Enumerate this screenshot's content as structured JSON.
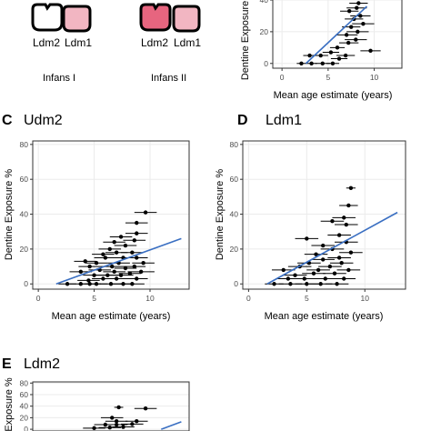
{
  "legend_top": {
    "group1": {
      "labels": [
        "Ldm2",
        "Ldm1"
      ],
      "caption": "Infans I",
      "tooth_colors": [
        "#ffffff",
        "#f2b6c2"
      ]
    },
    "group2": {
      "labels": [
        "Ldm2",
        "Ldm1"
      ],
      "caption": "Infans II",
      "tooth_colors": [
        "#e7657f",
        "#f2b6c2"
      ]
    }
  },
  "colors": {
    "fit_line": "#3a6fc2",
    "point": "#000000",
    "grid": "#ebebeb",
    "panel_border": "#333333"
  },
  "chart_data": [
    {
      "panel": "",
      "title": "",
      "type": "scatter",
      "xlabel": "Mean age estimate (years)",
      "ylabel": "Dentine Exposure %",
      "xlim": [
        -1,
        13
      ],
      "ylim": [
        -3,
        40
      ],
      "xticks": [
        0,
        5,
        10
      ],
      "yticks": [
        0,
        20,
        40
      ],
      "points": [
        {
          "x": 2.1,
          "y": 0,
          "xmin": 1.6,
          "xmax": 2.6
        },
        {
          "x": 3.2,
          "y": 0,
          "xmin": 2.6,
          "xmax": 3.8
        },
        {
          "x": 4.4,
          "y": 0,
          "xmin": 3.6,
          "xmax": 5.2
        },
        {
          "x": 5.5,
          "y": 0,
          "xmin": 4.8,
          "xmax": 6.2
        },
        {
          "x": 3.0,
          "y": 5,
          "xmin": 2.3,
          "xmax": 3.7
        },
        {
          "x": 4.2,
          "y": 5,
          "xmin": 3.4,
          "xmax": 5.0
        },
        {
          "x": 5.3,
          "y": 7,
          "xmin": 4.4,
          "xmax": 6.2
        },
        {
          "x": 6.0,
          "y": 10,
          "xmin": 5.2,
          "xmax": 6.8
        },
        {
          "x": 7.2,
          "y": 13,
          "xmin": 6.2,
          "xmax": 8.3
        },
        {
          "x": 8.0,
          "y": 15,
          "xmin": 6.8,
          "xmax": 9.2
        },
        {
          "x": 7.0,
          "y": 18,
          "xmin": 5.8,
          "xmax": 8.2
        },
        {
          "x": 8.2,
          "y": 20,
          "xmin": 7.0,
          "xmax": 9.4
        },
        {
          "x": 7.5,
          "y": 23,
          "xmin": 6.5,
          "xmax": 8.5
        },
        {
          "x": 8.8,
          "y": 25,
          "xmin": 7.6,
          "xmax": 10.0
        },
        {
          "x": 7.8,
          "y": 28,
          "xmin": 6.8,
          "xmax": 8.8
        },
        {
          "x": 8.5,
          "y": 30,
          "xmin": 7.4,
          "xmax": 9.6
        },
        {
          "x": 7.3,
          "y": 33,
          "xmin": 6.3,
          "xmax": 8.3
        },
        {
          "x": 8.1,
          "y": 35,
          "xmin": 7.0,
          "xmax": 9.2
        },
        {
          "x": 8.3,
          "y": 38,
          "xmin": 7.3,
          "xmax": 9.3
        },
        {
          "x": 6.2,
          "y": 3,
          "xmin": 5.3,
          "xmax": 7.1
        },
        {
          "x": 6.9,
          "y": 5,
          "xmin": 5.9,
          "xmax": 7.9
        },
        {
          "x": 9.6,
          "y": 8,
          "xmin": 8.5,
          "xmax": 10.7
        }
      ],
      "fit_line": [
        [
          2.6,
          0
        ],
        [
          9.2,
          36
        ]
      ]
    },
    {
      "panel": "C",
      "title": "Udm2",
      "type": "scatter",
      "xlabel": "Mean age estimate (years)",
      "ylabel": "Dentine Exposure %",
      "xlim": [
        -0.5,
        13.5
      ],
      "ylim": [
        -3,
        82
      ],
      "xticks": [
        0,
        5,
        10
      ],
      "yticks": [
        0,
        20,
        40,
        60,
        80
      ],
      "points": [
        {
          "x": 2.6,
          "y": 0,
          "xmin": 1.8,
          "xmax": 3.4
        },
        {
          "x": 3.8,
          "y": 0,
          "xmin": 2.8,
          "xmax": 4.8
        },
        {
          "x": 4.6,
          "y": 0,
          "xmin": 3.6,
          "xmax": 5.6
        },
        {
          "x": 5.2,
          "y": 0,
          "xmin": 4.2,
          "xmax": 6.2
        },
        {
          "x": 6.5,
          "y": 0,
          "xmin": 5.5,
          "xmax": 7.5
        },
        {
          "x": 7.6,
          "y": 0,
          "xmin": 6.6,
          "xmax": 8.6
        },
        {
          "x": 8.4,
          "y": 0,
          "xmin": 7.3,
          "xmax": 9.5
        },
        {
          "x": 4.5,
          "y": 2,
          "xmin": 3.5,
          "xmax": 5.5
        },
        {
          "x": 5.8,
          "y": 3,
          "xmin": 4.8,
          "xmax": 6.8
        },
        {
          "x": 7.0,
          "y": 3,
          "xmin": 6.0,
          "xmax": 8.0
        },
        {
          "x": 8.8,
          "y": 3,
          "xmin": 7.8,
          "xmax": 9.8
        },
        {
          "x": 5.0,
          "y": 5,
          "xmin": 4.0,
          "xmax": 6.0
        },
        {
          "x": 6.2,
          "y": 5,
          "xmin": 5.2,
          "xmax": 7.2
        },
        {
          "x": 7.4,
          "y": 5,
          "xmin": 6.3,
          "xmax": 8.5
        },
        {
          "x": 8.2,
          "y": 6,
          "xmin": 7.2,
          "xmax": 9.2
        },
        {
          "x": 3.8,
          "y": 7,
          "xmin": 2.8,
          "xmax": 4.8
        },
        {
          "x": 6.8,
          "y": 7,
          "xmin": 5.8,
          "xmax": 7.8
        },
        {
          "x": 9.2,
          "y": 7,
          "xmin": 8.0,
          "xmax": 10.4
        },
        {
          "x": 5.5,
          "y": 8,
          "xmin": 4.5,
          "xmax": 6.5
        },
        {
          "x": 7.8,
          "y": 9,
          "xmin": 6.8,
          "xmax": 8.8
        },
        {
          "x": 4.6,
          "y": 10,
          "xmin": 3.6,
          "xmax": 5.6
        },
        {
          "x": 6.6,
          "y": 10,
          "xmin": 5.6,
          "xmax": 7.6
        },
        {
          "x": 8.6,
          "y": 10,
          "xmin": 7.6,
          "xmax": 9.6
        },
        {
          "x": 5.2,
          "y": 12,
          "xmin": 4.2,
          "xmax": 6.2
        },
        {
          "x": 7.2,
          "y": 12,
          "xmin": 6.2,
          "xmax": 8.2
        },
        {
          "x": 9.4,
          "y": 12,
          "xmin": 8.4,
          "xmax": 10.4
        },
        {
          "x": 4.2,
          "y": 13,
          "xmin": 3.2,
          "xmax": 5.2
        },
        {
          "x": 6.0,
          "y": 15,
          "xmin": 5.0,
          "xmax": 7.0
        },
        {
          "x": 7.6,
          "y": 15,
          "xmin": 6.6,
          "xmax": 8.6
        },
        {
          "x": 8.8,
          "y": 15,
          "xmin": 7.8,
          "xmax": 9.8
        },
        {
          "x": 5.8,
          "y": 17,
          "xmin": 4.8,
          "xmax": 6.8
        },
        {
          "x": 7.0,
          "y": 18,
          "xmin": 6.0,
          "xmax": 8.0
        },
        {
          "x": 8.4,
          "y": 18,
          "xmin": 7.4,
          "xmax": 9.4
        },
        {
          "x": 6.4,
          "y": 20,
          "xmin": 5.4,
          "xmax": 7.4
        },
        {
          "x": 7.8,
          "y": 22,
          "xmin": 6.8,
          "xmax": 8.8
        },
        {
          "x": 6.8,
          "y": 24,
          "xmin": 5.8,
          "xmax": 7.8
        },
        {
          "x": 8.6,
          "y": 25,
          "xmin": 7.6,
          "xmax": 9.6
        },
        {
          "x": 7.4,
          "y": 27,
          "xmin": 6.4,
          "xmax": 8.4
        },
        {
          "x": 8.8,
          "y": 29,
          "xmin": 7.8,
          "xmax": 9.8
        },
        {
          "x": 8.8,
          "y": 35,
          "xmin": 7.8,
          "xmax": 9.8
        },
        {
          "x": 9.6,
          "y": 41,
          "xmin": 8.6,
          "xmax": 10.6
        }
      ],
      "fit_line": [
        [
          1.6,
          0
        ],
        [
          12.8,
          26
        ]
      ]
    },
    {
      "panel": "D",
      "title": "Ldm1",
      "type": "scatter",
      "xlabel": "Mean age estimate (years)",
      "ylabel": "Dentine Exposure %",
      "xlim": [
        -0.5,
        13.5
      ],
      "ylim": [
        -3,
        82
      ],
      "xticks": [
        0,
        5,
        10
      ],
      "yticks": [
        0,
        20,
        40,
        60,
        80
      ],
      "points": [
        {
          "x": 2.2,
          "y": 0,
          "xmin": 1.4,
          "xmax": 3.0
        },
        {
          "x": 3.6,
          "y": 0,
          "xmin": 2.6,
          "xmax": 4.6
        },
        {
          "x": 5.0,
          "y": 0,
          "xmin": 4.0,
          "xmax": 6.0
        },
        {
          "x": 6.2,
          "y": 0,
          "xmin": 5.2,
          "xmax": 7.2
        },
        {
          "x": 7.6,
          "y": 0,
          "xmin": 6.6,
          "xmax": 8.6
        },
        {
          "x": 3.4,
          "y": 3,
          "xmin": 2.4,
          "xmax": 4.4
        },
        {
          "x": 4.8,
          "y": 3,
          "xmin": 3.8,
          "xmax": 5.8
        },
        {
          "x": 6.6,
          "y": 3,
          "xmin": 5.6,
          "xmax": 7.6
        },
        {
          "x": 8.2,
          "y": 3,
          "xmin": 7.2,
          "xmax": 9.2
        },
        {
          "x": 4.0,
          "y": 5,
          "xmin": 3.0,
          "xmax": 5.0
        },
        {
          "x": 5.6,
          "y": 6,
          "xmin": 4.6,
          "xmax": 6.6
        },
        {
          "x": 7.4,
          "y": 6,
          "xmin": 6.4,
          "xmax": 8.4
        },
        {
          "x": 3.0,
          "y": 8,
          "xmin": 2.0,
          "xmax": 4.0
        },
        {
          "x": 6.0,
          "y": 8,
          "xmin": 5.0,
          "xmax": 7.0
        },
        {
          "x": 8.6,
          "y": 8,
          "xmin": 7.6,
          "xmax": 9.6
        },
        {
          "x": 4.4,
          "y": 10,
          "xmin": 3.4,
          "xmax": 5.4
        },
        {
          "x": 7.0,
          "y": 10,
          "xmin": 6.0,
          "xmax": 8.0
        },
        {
          "x": 5.2,
          "y": 12,
          "xmin": 4.2,
          "xmax": 6.2
        },
        {
          "x": 8.0,
          "y": 12,
          "xmin": 7.0,
          "xmax": 9.0
        },
        {
          "x": 6.4,
          "y": 14,
          "xmin": 5.4,
          "xmax": 7.4
        },
        {
          "x": 7.8,
          "y": 15,
          "xmin": 6.8,
          "xmax": 8.8
        },
        {
          "x": 5.8,
          "y": 17,
          "xmin": 4.8,
          "xmax": 6.8
        },
        {
          "x": 8.8,
          "y": 18,
          "xmin": 7.8,
          "xmax": 9.8
        },
        {
          "x": 7.2,
          "y": 20,
          "xmin": 6.2,
          "xmax": 8.2
        },
        {
          "x": 6.4,
          "y": 22,
          "xmin": 5.4,
          "xmax": 7.4
        },
        {
          "x": 8.4,
          "y": 24,
          "xmin": 7.4,
          "xmax": 9.4
        },
        {
          "x": 5.0,
          "y": 26,
          "xmin": 4.0,
          "xmax": 6.0
        },
        {
          "x": 7.8,
          "y": 28,
          "xmin": 6.8,
          "xmax": 8.8
        },
        {
          "x": 8.4,
          "y": 34,
          "xmin": 7.4,
          "xmax": 9.4
        },
        {
          "x": 7.2,
          "y": 36,
          "xmin": 6.2,
          "xmax": 8.2
        },
        {
          "x": 8.2,
          "y": 38,
          "xmin": 7.2,
          "xmax": 9.2
        },
        {
          "x": 8.6,
          "y": 45,
          "xmin": 7.8,
          "xmax": 9.4
        },
        {
          "x": 8.8,
          "y": 55,
          "xmin": 8.4,
          "xmax": 9.2
        }
      ],
      "fit_line": [
        [
          1.6,
          0
        ],
        [
          12.8,
          41
        ]
      ]
    },
    {
      "panel": "E",
      "title": "Ldm2",
      "type": "scatter",
      "xlabel": "",
      "ylabel": "Exposure %",
      "xlim": [
        -0.5,
        13.5
      ],
      "ylim": [
        -3,
        82
      ],
      "xticks": [],
      "yticks": [
        0,
        20,
        40,
        60,
        80
      ],
      "points": [
        {
          "x": 5.0,
          "y": 2,
          "xmin": 4.0,
          "xmax": 6.0
        },
        {
          "x": 6.4,
          "y": 3,
          "xmin": 5.4,
          "xmax": 7.4
        },
        {
          "x": 7.6,
          "y": 4,
          "xmin": 6.6,
          "xmax": 8.6
        },
        {
          "x": 6.0,
          "y": 8,
          "xmin": 5.0,
          "xmax": 7.0
        },
        {
          "x": 7.0,
          "y": 8,
          "xmin": 6.0,
          "xmax": 8.0
        },
        {
          "x": 8.4,
          "y": 9,
          "xmin": 7.4,
          "xmax": 9.4
        },
        {
          "x": 7.0,
          "y": 14,
          "xmin": 6.0,
          "xmax": 8.0
        },
        {
          "x": 8.8,
          "y": 14,
          "xmin": 7.8,
          "xmax": 9.8
        },
        {
          "x": 6.6,
          "y": 20,
          "xmin": 5.6,
          "xmax": 7.6
        },
        {
          "x": 7.2,
          "y": 38,
          "xmin": 6.8,
          "xmax": 7.6
        },
        {
          "x": 9.6,
          "y": 36,
          "xmin": 8.6,
          "xmax": 10.6
        }
      ],
      "fit_line": [
        [
          11.0,
          0
        ],
        [
          12.8,
          13
        ]
      ]
    }
  ]
}
